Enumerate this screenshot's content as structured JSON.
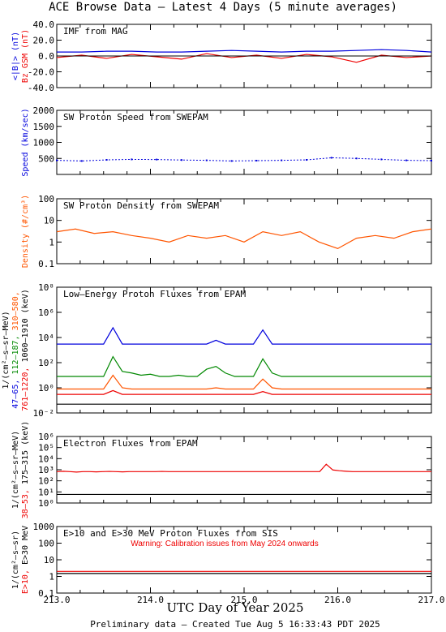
{
  "page": {
    "title": "ACE Browse Data  – Latest 4 Days (5 minute averages)",
    "xlabel": "UTC Day of Year 2025",
    "footer": "Preliminary data – Created Tue Aug  5 16:33:43 PDT 2025"
  },
  "x_axis": {
    "range": [
      213.0,
      217.0
    ],
    "tick_labels": [
      "213.0",
      "214.0",
      "215.0",
      "216.0",
      "217.0"
    ]
  },
  "colors": {
    "axis": "#000000",
    "blue": "#0000dd",
    "red": "#ee0000",
    "green": "#008800",
    "orange": "#ff5500",
    "black": "#000000"
  },
  "chart_data": [
    {
      "type": "line",
      "title": "IMF from MAG",
      "ylim": [
        -40,
        40
      ],
      "ytick_labels": [
        "40.0",
        "20.0",
        "0.0",
        "-20.0",
        "-40.0"
      ],
      "ylabel_lines": [
        {
          "text": "<|B|> (nT)",
          "color": "#0000dd"
        },
        {
          "text": "Bz GSM (nT)",
          "color": "#ee0000"
        }
      ],
      "series": [
        {
          "color": "#0000dd",
          "values": [
            5,
            5,
            6,
            6,
            5,
            5,
            6,
            7,
            6,
            5,
            6,
            6,
            7,
            8,
            7,
            5
          ]
        },
        {
          "color": "#ee0000",
          "values": [
            -2,
            1,
            -3,
            2,
            -1,
            -4,
            3,
            -2,
            1,
            -3,
            2,
            -1,
            -8,
            1,
            -2,
            0
          ]
        }
      ]
    },
    {
      "type": "scatter",
      "title": "SW Proton Speed from SWEPAM",
      "ylim": [
        0,
        2000
      ],
      "ytick_labels": [
        "2000",
        "1500",
        "1000",
        "500"
      ],
      "ylabel_lines": [
        {
          "text": "Speed (km/sec)",
          "color": "#0000dd"
        }
      ],
      "series": [
        {
          "color": "#0000dd",
          "values": [
            440,
            420,
            455,
            470,
            465,
            450,
            440,
            420,
            430,
            440,
            455,
            520,
            500,
            470,
            440,
            430
          ]
        }
      ]
    },
    {
      "type": "line",
      "title": "SW Proton Density from SWEPAM",
      "yscale": "log",
      "ylim": [
        0.1,
        100
      ],
      "ytick_labels": [
        "100",
        "10",
        "1",
        "0.1"
      ],
      "ylabel_lines": [
        {
          "text": "Density (#/cm³)",
          "color": "#ff5500"
        }
      ],
      "series": [
        {
          "color": "#ff5500",
          "values": [
            3,
            4,
            2.5,
            3,
            2,
            1.5,
            1,
            2,
            1.5,
            2,
            1,
            3,
            2,
            3,
            1,
            0.5,
            1.5,
            2,
            1.5,
            3,
            4
          ]
        }
      ]
    },
    {
      "type": "line",
      "title": "Low–Energy Proton Fluxes from EPAM",
      "yscale": "log",
      "ylim": [
        0.01,
        100000000
      ],
      "ytick_labels": [
        "10⁸",
        "10⁶",
        "10⁴",
        "10²",
        "10⁰",
        "10⁻²"
      ],
      "ylabel_lines": [
        {
          "text": "1/(cm²–s–sr–MeV)",
          "color": "#000000"
        },
        {
          "parts": [
            {
              "text": "47–65, ",
              "color": "#0000dd"
            },
            {
              "text": "112–187, ",
              "color": "#008800"
            },
            {
              "text": "310–580,",
              "color": "#ff5500"
            }
          ]
        },
        {
          "parts": [
            {
              "text": "761–1220, ",
              "color": "#ee0000"
            },
            {
              "text": "1060–1910 (keV)",
              "color": "#000000"
            }
          ]
        }
      ],
      "series": [
        {
          "name": "47–65",
          "color": "#0000dd",
          "values": [
            3000,
            3000,
            3000,
            3000,
            3000,
            3000,
            60000,
            3000,
            3000,
            3000,
            3000,
            3000,
            3000,
            3000,
            3000,
            3000,
            3000,
            6000,
            3000,
            3000,
            3000,
            3000,
            40000,
            3000,
            3000,
            3000,
            3000,
            3000,
            3000,
            3000,
            3000,
            3000,
            3000,
            3000,
            3000,
            3000,
            3000,
            3000,
            3000,
            3000,
            3000
          ]
        },
        {
          "name": "112–187",
          "color": "#008800",
          "values": [
            8,
            8,
            8,
            8,
            8,
            8,
            300,
            20,
            15,
            10,
            12,
            8,
            8,
            10,
            8,
            8,
            30,
            50,
            15,
            8,
            8,
            8,
            200,
            15,
            8,
            8,
            8,
            8,
            8,
            8,
            8,
            8,
            8,
            8,
            8,
            8,
            8,
            8,
            8,
            8,
            8
          ]
        },
        {
          "name": "310–580",
          "color": "#ff5500",
          "values": [
            0.8,
            0.8,
            0.8,
            0.8,
            0.8,
            0.8,
            10,
            1,
            0.8,
            0.8,
            0.8,
            0.8,
            0.8,
            0.8,
            0.8,
            0.8,
            0.8,
            1,
            0.8,
            0.8,
            0.8,
            0.8,
            5,
            1,
            0.8,
            0.8,
            0.8,
            0.8,
            0.8,
            0.8,
            0.8,
            0.8,
            0.8,
            0.8,
            0.8,
            0.8,
            0.8,
            0.8,
            0.8,
            0.8,
            0.8
          ]
        },
        {
          "name": "761–1220",
          "color": "#ee0000",
          "values": [
            0.3,
            0.3,
            0.3,
            0.3,
            0.3,
            0.3,
            0.6,
            0.3,
            0.3,
            0.3,
            0.3,
            0.3,
            0.3,
            0.3,
            0.3,
            0.3,
            0.3,
            0.3,
            0.3,
            0.3,
            0.3,
            0.3,
            0.5,
            0.3,
            0.3,
            0.3,
            0.3,
            0.3,
            0.3,
            0.3,
            0.3,
            0.3,
            0.3,
            0.3,
            0.3,
            0.3,
            0.3,
            0.3,
            0.3,
            0.3,
            0.3
          ]
        },
        {
          "name": "1060–1910",
          "color": "#000000",
          "values": [
            0.05,
            0.05,
            0.05,
            0.05,
            0.05,
            0.05,
            0.05,
            0.05,
            0.05,
            0.05,
            0.05,
            0.05,
            0.05,
            0.05,
            0.05,
            0.05,
            0.05,
            0.05,
            0.05,
            0.05,
            0.05,
            0.05,
            0.05,
            0.05,
            0.05,
            0.05,
            0.05,
            0.05,
            0.05,
            0.05,
            0.05,
            0.05,
            0.05,
            0.05,
            0.05,
            0.05,
            0.05,
            0.05,
            0.05,
            0.05,
            0.05
          ]
        }
      ]
    },
    {
      "type": "line",
      "title": "Electron Fluxes from EPAM",
      "yscale": "log",
      "ylim": [
        1,
        10000000
      ],
      "ytick_labels": [
        "10⁶",
        "10⁵",
        "10⁴",
        "10³",
        "10²",
        "10¹",
        "10⁰"
      ],
      "ylabel_lines": [
        {
          "text": "1/(cm²–s–sr–MeV)",
          "color": "#000000"
        },
        {
          "parts": [
            {
              "text": "38–53, ",
              "color": "#ee0000"
            },
            {
              "text": "175–315 (keV)",
              "color": "#000000"
            }
          ]
        }
      ],
      "series": [
        {
          "name": "38–53",
          "color": "#ee0000",
          "values": [
            2000,
            2200,
            2000,
            1800,
            2000,
            2000,
            1900,
            2000,
            2100,
            2000,
            1900,
            2000,
            2000,
            2000,
            2000,
            2000,
            2100,
            2000,
            2000,
            2000,
            2000,
            2000,
            2000,
            2000,
            2000,
            2000,
            2000,
            2000,
            2000,
            2000,
            2000,
            2000,
            2000,
            2000,
            2000,
            2000,
            2000,
            2000,
            2000,
            2000,
            2000,
            12000,
            3000,
            2500,
            2200,
            2000,
            2000,
            2000,
            2000,
            2000,
            2000,
            2000,
            2000,
            2000,
            2000,
            2000,
            2000,
            2000
          ]
        },
        {
          "name": "175–315",
          "color": "#000000",
          "values": [
            8,
            8,
            8,
            8,
            8,
            8,
            8,
            8,
            8,
            8,
            8,
            8,
            8,
            8,
            8,
            8,
            8,
            8,
            8,
            8,
            8,
            8,
            8,
            8,
            8,
            8,
            8,
            8,
            8,
            8,
            8,
            8,
            8,
            8,
            8,
            8,
            8,
            8,
            8,
            8,
            8,
            8,
            8,
            8,
            8,
            8,
            8,
            8,
            8,
            8,
            8,
            8,
            8,
            8,
            8,
            8,
            8,
            8
          ]
        }
      ]
    },
    {
      "type": "line",
      "title": "E>10 and E>30 MeV Proton Fluxes from SIS",
      "yscale": "log",
      "ylim": [
        0.1,
        1000
      ],
      "ytick_labels": [
        "1000",
        "100",
        "10",
        "1",
        "0.1"
      ],
      "annotation": "Warning: Calibration issues from May 2024 onwards",
      "ylabel_lines": [
        {
          "text": "1/(cm²–s–sr)",
          "color": "#000000"
        },
        {
          "parts": [
            {
              "text": "E>10, ",
              "color": "#ee0000"
            },
            {
              "text": "E>30 MeV",
              "color": "#000000"
            }
          ]
        }
      ],
      "series": [
        {
          "name": "E>10",
          "color": "#ee0000",
          "values": [
            2.0,
            2.0,
            2.0,
            2.0,
            2.0,
            2.0,
            2.0,
            2.0,
            2.0,
            2.0,
            2.0,
            2.0,
            2.0,
            2.0,
            2.0,
            2.0,
            2.0,
            2.0,
            2.0,
            2.0,
            2.0
          ]
        },
        {
          "name": "E>30",
          "color": "#000000",
          "values": [
            1.5,
            1.5,
            1.5,
            1.5,
            1.5,
            1.5,
            1.5,
            1.5,
            1.5,
            1.5,
            1.5,
            1.5,
            1.5,
            1.5,
            1.5,
            1.5,
            1.5,
            1.5,
            1.5,
            1.5,
            1.5
          ]
        }
      ]
    }
  ]
}
